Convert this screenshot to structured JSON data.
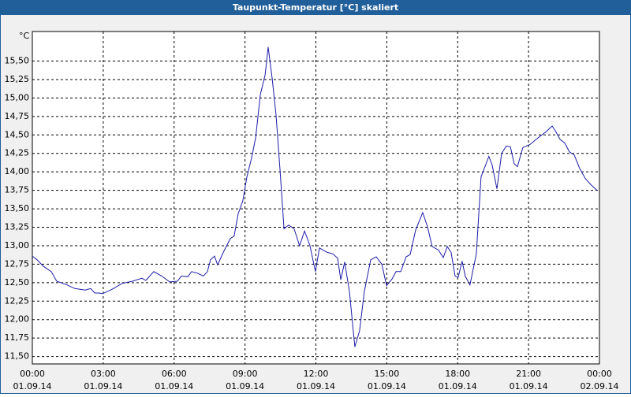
{
  "chart_data": {
    "type": "line",
    "title": "Taupunkt-Temperatur [°C] skaliert",
    "ylabel": "°C",
    "series": [
      {
        "name": "Taupunkt-Temperatur",
        "color": "#1c1ca8",
        "x": [
          0,
          0.2,
          0.47,
          0.8,
          1.03,
          1.47,
          1.8,
          2.24,
          2.47,
          2.64,
          2.84,
          2.97,
          3.37,
          3.8,
          4.24,
          4.64,
          4.8,
          5.14,
          5.47,
          5.81,
          6.14,
          6.31,
          6.58,
          6.74,
          6.98,
          7.24,
          7.41,
          7.54,
          7.71,
          7.84,
          8.08,
          8.38,
          8.54,
          8.71,
          8.91,
          9.08,
          9.28,
          9.45,
          9.65,
          9.85,
          9.98,
          10.15,
          10.31,
          10.48,
          10.65,
          10.85,
          11.08,
          11.31,
          11.52,
          11.75,
          11.98,
          12.15,
          12.48,
          12.72,
          12.92,
          13.05,
          13.22,
          13.42,
          13.65,
          13.85,
          14.05,
          14.32,
          14.55,
          14.79,
          14.99,
          15.22,
          15.39,
          15.59,
          15.82,
          15.99,
          16.22,
          16.52,
          16.72,
          16.92,
          17.19,
          17.39,
          17.56,
          17.72,
          17.89,
          18.02,
          18.19,
          18.32,
          18.52,
          18.79,
          18.99,
          19.32,
          19.46,
          19.66,
          19.86,
          20.06,
          20.23,
          20.39,
          20.53,
          20.76,
          21.06,
          21.4,
          21.73,
          22.0,
          22.16,
          22.33,
          22.53,
          22.73,
          22.93,
          23.16,
          23.4,
          23.66,
          23.9
        ],
        "values": [
          12.86,
          12.81,
          12.72,
          12.65,
          12.52,
          12.47,
          12.42,
          12.4,
          12.42,
          12.36,
          12.36,
          12.35,
          12.41,
          12.49,
          12.52,
          12.56,
          12.53,
          12.65,
          12.59,
          12.51,
          12.52,
          12.59,
          12.58,
          12.65,
          12.63,
          12.59,
          12.65,
          12.81,
          12.86,
          12.74,
          12.91,
          13.1,
          13.13,
          13.43,
          13.61,
          13.93,
          14.19,
          14.46,
          15.05,
          15.31,
          15.69,
          15.26,
          14.78,
          14.03,
          13.23,
          13.28,
          13.23,
          13.0,
          13.2,
          13.0,
          12.65,
          12.97,
          12.91,
          12.89,
          12.83,
          12.54,
          12.78,
          12.38,
          11.63,
          11.85,
          12.38,
          12.81,
          12.85,
          12.75,
          12.46,
          12.55,
          12.65,
          12.65,
          12.85,
          12.88,
          13.21,
          13.45,
          13.26,
          12.99,
          12.94,
          12.84,
          12.99,
          12.91,
          12.59,
          12.57,
          12.79,
          12.59,
          12.47,
          12.89,
          13.93,
          14.21,
          14.09,
          13.77,
          14.25,
          14.35,
          14.34,
          14.11,
          14.07,
          14.33,
          14.37,
          14.46,
          14.54,
          14.62,
          14.54,
          14.44,
          14.39,
          14.27,
          14.23,
          14.05,
          13.91,
          13.82,
          13.75
        ]
      }
    ],
    "xlim": [
      0,
      24
    ],
    "ylim": [
      11.4,
      15.9
    ],
    "grid": true,
    "xticks": [
      {
        "value": 0,
        "label": "00:00",
        "sublabel": "01.09.14"
      },
      {
        "value": 3,
        "label": "03:00",
        "sublabel": "01.09.14"
      },
      {
        "value": 6,
        "label": "06:00",
        "sublabel": "01.09.14"
      },
      {
        "value": 9,
        "label": "09:00",
        "sublabel": "01.09.14"
      },
      {
        "value": 12,
        "label": "12:00",
        "sublabel": "01.09.14"
      },
      {
        "value": 15,
        "label": "15:00",
        "sublabel": "01.09.14"
      },
      {
        "value": 18,
        "label": "18:00",
        "sublabel": "01.09.14"
      },
      {
        "value": 21,
        "label": "21:00",
        "sublabel": "01.09.14"
      },
      {
        "value": 24,
        "label": "00:00",
        "sublabel": "02.09.14"
      }
    ],
    "yticks": [
      {
        "value": 11.5,
        "label": "11,50"
      },
      {
        "value": 11.75,
        "label": "11,75"
      },
      {
        "value": 12,
        "label": "12,00"
      },
      {
        "value": 12.25,
        "label": "12,25"
      },
      {
        "value": 12.5,
        "label": "12,50"
      },
      {
        "value": 12.75,
        "label": "12,75"
      },
      {
        "value": 13,
        "label": "13,00"
      },
      {
        "value": 13.25,
        "label": "13,25"
      },
      {
        "value": 13.5,
        "label": "13,50"
      },
      {
        "value": 13.75,
        "label": "13,75"
      },
      {
        "value": 14,
        "label": "14,00"
      },
      {
        "value": 14.25,
        "label": "14,25"
      },
      {
        "value": 14.5,
        "label": "14,50"
      },
      {
        "value": 14.75,
        "label": "14,75"
      },
      {
        "value": 15,
        "label": "15,00"
      },
      {
        "value": 15.25,
        "label": "15,25"
      },
      {
        "value": 15.5,
        "label": "15,50"
      }
    ]
  }
}
